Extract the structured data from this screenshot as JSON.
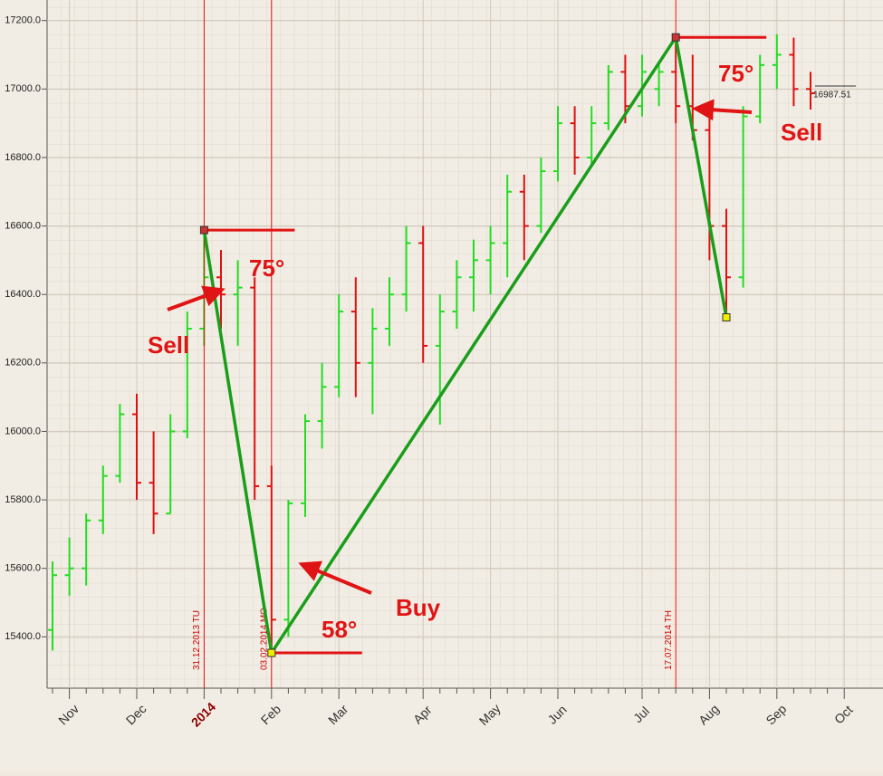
{
  "chart_data": {
    "type": "ohlc",
    "categories": [
      null,
      "Nov",
      null,
      null,
      null,
      "Dec",
      null,
      null,
      null,
      "2014",
      null,
      null,
      null,
      "Feb",
      null,
      null,
      null,
      "Mar",
      null,
      null,
      null,
      null,
      "Apr",
      null,
      null,
      null,
      "May",
      null,
      null,
      null,
      "Jun",
      null,
      null,
      null,
      null,
      "Jul",
      null,
      null,
      null,
      "Aug",
      null,
      null,
      null,
      "Sep",
      null,
      null,
      null,
      "Oct"
    ],
    "open": [
      15420,
      15580,
      15600,
      15740,
      15870,
      16050,
      15850,
      15760,
      16000,
      16300,
      16450,
      16400,
      16420,
      15840,
      15450,
      15790,
      16030,
      16130,
      16350,
      16200,
      16300,
      16400,
      16550,
      16250,
      16350,
      16450,
      16500,
      16550,
      16700,
      16600,
      16760,
      16900,
      16800,
      16900,
      17050,
      16950,
      17000,
      17050,
      16950,
      16880,
      16600,
      16450,
      16920,
      17070,
      17100,
      17000,
      null,
      null
    ],
    "high": [
      15620,
      15690,
      15760,
      15900,
      16080,
      16110,
      16000,
      16050,
      16350,
      16588,
      16530,
      16500,
      16450,
      15900,
      15800,
      16050,
      16200,
      16400,
      16450,
      16360,
      16450,
      16600,
      16600,
      16400,
      16500,
      16560,
      16600,
      16750,
      16750,
      16800,
      16950,
      16950,
      16950,
      17070,
      17100,
      17100,
      17080,
      17151,
      17100,
      16920,
      16650,
      16950,
      17100,
      17160,
      17150,
      17050,
      null,
      null
    ],
    "low": [
      15360,
      15520,
      15550,
      15700,
      15850,
      15800,
      15700,
      15760,
      15980,
      16250,
      16300,
      16250,
      15800,
      15353,
      15400,
      15750,
      15950,
      16100,
      16100,
      16050,
      16250,
      16350,
      16200,
      16020,
      16300,
      16350,
      16400,
      16450,
      16500,
      16580,
      16730,
      16750,
      16780,
      16880,
      16900,
      16920,
      16950,
      16900,
      16850,
      16500,
      16333,
      16420,
      16900,
      17000,
      16950,
      16940,
      null,
      null
    ],
    "close": [
      15580,
      15600,
      15740,
      15870,
      16050,
      15850,
      15760,
      16000,
      16300,
      16450,
      16400,
      16420,
      15840,
      15450,
      15790,
      16030,
      16130,
      16350,
      16200,
      16300,
      16400,
      16550,
      16250,
      16350,
      16450,
      16500,
      16550,
      16700,
      16600,
      16760,
      16900,
      16800,
      16900,
      17050,
      16950,
      17050,
      17050,
      16950,
      16880,
      16600,
      16450,
      16920,
      17070,
      17100,
      17000,
      16987.51,
      null,
      null
    ],
    "up_color": "#22dd22",
    "down_color": "#e01010",
    "ylim": [
      15250,
      17260
    ],
    "yticks": [
      {
        "value": 15400,
        "label": "15400.0"
      },
      {
        "value": 15600,
        "label": "15600.0"
      },
      {
        "value": 15800,
        "label": "15800.0"
      },
      {
        "value": 16000,
        "label": "16000.0"
      },
      {
        "value": 16200,
        "label": "16200.0"
      },
      {
        "value": 16400,
        "label": "16400.0"
      },
      {
        "value": 16600,
        "label": "16600.0"
      },
      {
        "value": 16800,
        "label": "16800.0"
      },
      {
        "value": 17000,
        "label": "17000.0"
      },
      {
        "value": 17200,
        "label": "17200.0"
      }
    ],
    "grid": true,
    "zigzag": {
      "values": [
        16588,
        15353,
        17151,
        16333
      ],
      "color": "#1a9e1a"
    },
    "vlines": [
      "31.12.2013 TU",
      "03.02.2014 MO",
      "17.07.2014 TH"
    ],
    "angles": [
      "75°",
      "58°",
      "75°"
    ],
    "signals": [
      "Sell",
      "Buy",
      "Sell"
    ]
  }
}
